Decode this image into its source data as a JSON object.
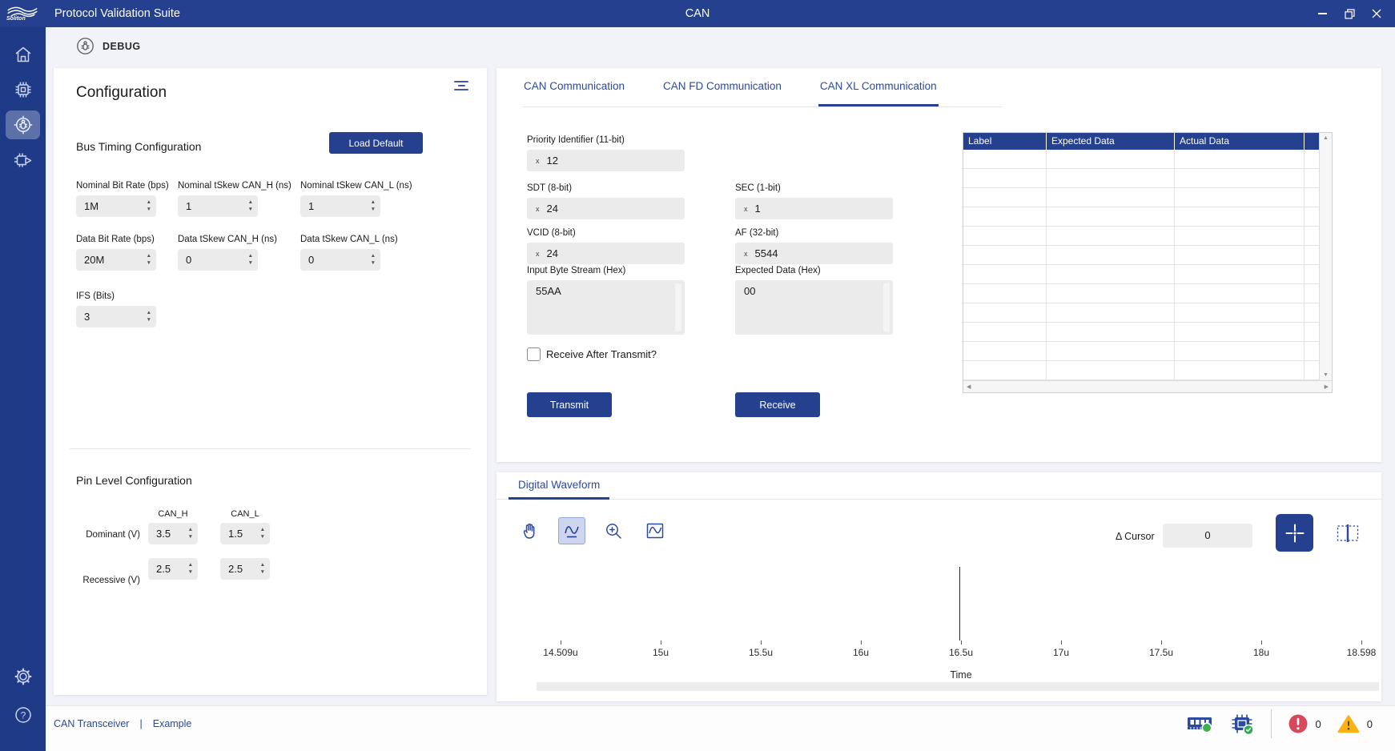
{
  "titlebar": {
    "logo_text": "Soliton",
    "app_title": "Protocol Validation Suite",
    "page_title": "CAN"
  },
  "debug_header": {
    "title": "DEBUG"
  },
  "config": {
    "title": "Configuration",
    "bus_timing": {
      "heading": "Bus Timing Configuration",
      "load_default": "Load Default",
      "fields": [
        {
          "label": "Nominal Bit Rate (bps)",
          "value": "1M"
        },
        {
          "label": "Nominal tSkew CAN_H (ns)",
          "value": "1"
        },
        {
          "label": "Nominal tSkew CAN_L (ns)",
          "value": "1"
        },
        {
          "label": "Data Bit Rate (bps)",
          "value": "20M"
        },
        {
          "label": "Data tSkew CAN_H (ns)",
          "value": "0"
        },
        {
          "label": "Data tSkew CAN_L (ns)",
          "value": "0"
        },
        {
          "label": "IFS (Bits)",
          "value": "3"
        }
      ]
    },
    "pin_level": {
      "heading": "Pin Level Configuration",
      "columns": [
        "CAN_H",
        "CAN_L"
      ],
      "rows": [
        {
          "label": "Dominant (V)",
          "values": [
            "3.5",
            "1.5"
          ]
        },
        {
          "label": "Recessive (V)",
          "values": [
            "2.5",
            "2.5"
          ]
        }
      ]
    }
  },
  "comm": {
    "tabs": [
      {
        "label": "CAN Communication"
      },
      {
        "label": "CAN FD Communication"
      },
      {
        "label": "CAN XL Communication"
      }
    ],
    "active_tab": "CAN XL Communication",
    "fields": {
      "priority": {
        "label": "Priority Identifier (11-bit)",
        "prefix": "x",
        "value": "12"
      },
      "sdt": {
        "label": "SDT (8-bit)",
        "prefix": "x",
        "value": "24"
      },
      "sec": {
        "label": "SEC (1-bit)",
        "prefix": "x",
        "value": "1"
      },
      "vcid": {
        "label": "VCID (8-bit)",
        "prefix": "x",
        "value": "24"
      },
      "af": {
        "label": "AF (32-bit)",
        "prefix": "x",
        "value": "5544"
      },
      "input_stream": {
        "label": "Input Byte Stream (Hex)",
        "value": "55AA"
      },
      "expected_data": {
        "label": "Expected Data (Hex)",
        "value": "00"
      }
    },
    "receive_after_transmit": {
      "label": "Receive After Transmit?",
      "checked": false
    },
    "transmit_button": "Transmit",
    "receive_button": "Receive",
    "results_table": {
      "headers": [
        "Label",
        "Expected Data",
        "Actual Data"
      ],
      "empty_row_count": 12
    }
  },
  "waveform": {
    "tab_label": "Digital Waveform",
    "delta_cursor_label": "Δ Cursor",
    "delta_cursor_value": "0",
    "axis_label": "Time",
    "ticks": [
      "14.509u",
      "15u",
      "15.5u",
      "16u",
      "16.5u",
      "17u",
      "17.5u",
      "18u",
      "18.598"
    ],
    "cursor_position_pct": 49.8
  },
  "statusbar": {
    "links": [
      "CAN Transceiver",
      "Example"
    ],
    "separator": "|",
    "error_count": "0",
    "warning_count": "0"
  },
  "icons": {
    "soliton-waves-icon": "brand waves",
    "home-icon": "house outline",
    "device-icon": "chip outline",
    "debug-icon": "bug in circle",
    "run-icon": "chip with play triangle",
    "settings-icon": "gear",
    "help-icon": "question mark in circle",
    "menu-icon": "three horizontal bars",
    "pan-hand-icon": "open hand",
    "waveform-select-icon": "sine wave with baseline",
    "zoom-in-icon": "magnifier with plus",
    "waveform-fit-icon": "sine wave in frame",
    "crosshair-icon": "plus crosshair with center dot",
    "cursor-placement-icon": "dashed box with vertical line",
    "memory-icon": "RAM module with green dot",
    "board-status-icon": "chip with green check",
    "error-icon": "red circle exclamation",
    "warning-icon": "yellow triangle exclamation",
    "minimize-icon": "horizontal bar",
    "restore-icon": "overlapping squares",
    "close-icon": "x cross"
  },
  "colors": {
    "brand_blue": "#24408E",
    "sidebar_blue": "#1F3A86",
    "link_blue": "#2B4A9F",
    "field_gray": "#ebebeb",
    "success_green": "#3CB24A",
    "error_red": "#D5495A",
    "warning_yellow": "#F8B312"
  }
}
